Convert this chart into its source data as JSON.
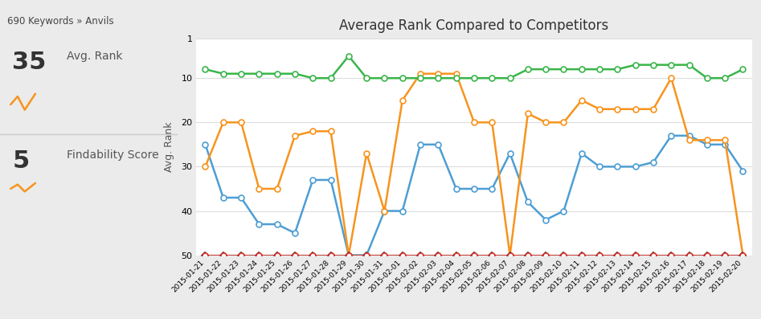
{
  "title": "Average Rank Compared to Competitors",
  "ylabel": "Avg. Rank",
  "ylim": [
    50,
    1
  ],
  "yticks": [
    1,
    10,
    20,
    30,
    40,
    50
  ],
  "dates": [
    "2015-01-21",
    "2015-01-22",
    "2015-01-23",
    "2015-01-24",
    "2015-01-25",
    "2015-01-26",
    "2015-01-27",
    "2015-01-28",
    "2015-01-29",
    "2015-01-30",
    "2015-01-31",
    "2015-02-01",
    "2015-02-02",
    "2015-02-03",
    "2015-02-04",
    "2015-02-05",
    "2015-02-06",
    "2015-02-07",
    "2015-02-08",
    "2015-02-09",
    "2015-02-10",
    "2015-02-11",
    "2015-02-12",
    "2015-02-13",
    "2015-02-14",
    "2015-02-15",
    "2015-02-16",
    "2015-02-17",
    "2015-02-18",
    "2015-02-19",
    "2015-02-20"
  ],
  "series": {
    "Acme Anvil": {
      "color": "#4d9ed4",
      "marker": "o",
      "markersize": 5,
      "linewidth": 1.8,
      "zorder": 3,
      "data": [
        25,
        37,
        37,
        43,
        43,
        45,
        33,
        33,
        50,
        50,
        40,
        40,
        25,
        25,
        35,
        35,
        35,
        27,
        38,
        42,
        40,
        27,
        30,
        30,
        30,
        29,
        23,
        23,
        25,
        25,
        31
      ]
    },
    "en.wikipedia.org": {
      "color": "#3ab54a",
      "marker": "o",
      "markersize": 5,
      "linewidth": 1.8,
      "zorder": 4,
      "data": [
        8,
        9,
        9,
        9,
        9,
        9,
        10,
        10,
        5,
        10,
        10,
        10,
        10,
        10,
        10,
        10,
        10,
        10,
        8,
        8,
        8,
        8,
        8,
        8,
        7,
        7,
        7,
        7,
        10,
        10,
        8
      ]
    },
    "www.huffingtonpost.com": {
      "color": "#f7941d",
      "marker": "o",
      "markersize": 5,
      "linewidth": 1.8,
      "zorder": 3,
      "data": [
        30,
        20,
        20,
        35,
        35,
        23,
        22,
        22,
        50,
        27,
        40,
        15,
        9,
        9,
        9,
        20,
        20,
        50,
        18,
        20,
        20,
        15,
        17,
        17,
        17,
        17,
        10,
        24,
        24,
        24,
        50
      ]
    },
    "wiki.answers.com": {
      "color": "#f7c31d",
      "marker": "o",
      "markersize": 5,
      "linewidth": 1.8,
      "zorder": 3,
      "data": [
        50,
        50,
        50,
        50,
        50,
        50,
        50,
        50,
        50,
        50,
        50,
        50,
        50,
        50,
        50,
        50,
        50,
        50,
        50,
        50,
        50,
        50,
        50,
        50,
        50,
        50,
        50,
        50,
        50,
        50,
        50
      ]
    },
    "answers.yahoo.com": {
      "color": "#333333",
      "marker": "D",
      "markersize": 4,
      "linewidth": 1.8,
      "zorder": 3,
      "data": [
        50,
        50,
        50,
        50,
        50,
        50,
        50,
        50,
        50,
        50,
        50,
        50,
        50,
        50,
        50,
        50,
        50,
        50,
        50,
        50,
        50,
        50,
        50,
        50,
        50,
        50,
        50,
        50,
        50,
        50,
        50
      ]
    },
    "www.nytimes.com": {
      "color": "#e03030",
      "marker": "o",
      "markersize": 5,
      "linewidth": 1.8,
      "zorder": 3,
      "data": [
        50,
        50,
        50,
        50,
        50,
        50,
        50,
        50,
        50,
        50,
        50,
        50,
        50,
        50,
        50,
        50,
        50,
        50,
        50,
        50,
        50,
        50,
        50,
        50,
        50,
        50,
        50,
        50,
        50,
        50,
        50
      ]
    },
    "www.ehow.com": {
      "color": "#aaaaaa",
      "marker": "o",
      "markersize": 5,
      "linewidth": 1.8,
      "zorder": 2,
      "data": [
        50,
        50,
        50,
        50,
        50,
        50,
        50,
        50,
        50,
        50,
        50,
        50,
        50,
        50,
        50,
        50,
        50,
        50,
        50,
        50,
        50,
        50,
        50,
        50,
        50,
        50,
        50,
        50,
        50,
        50,
        50
      ]
    }
  },
  "left_panel": {
    "avg_rank": "35",
    "avg_rank_label": "Avg. Rank",
    "findability_score": "5",
    "findability_label": "Findability Score"
  },
  "header": "690 Keywords » Anvils"
}
